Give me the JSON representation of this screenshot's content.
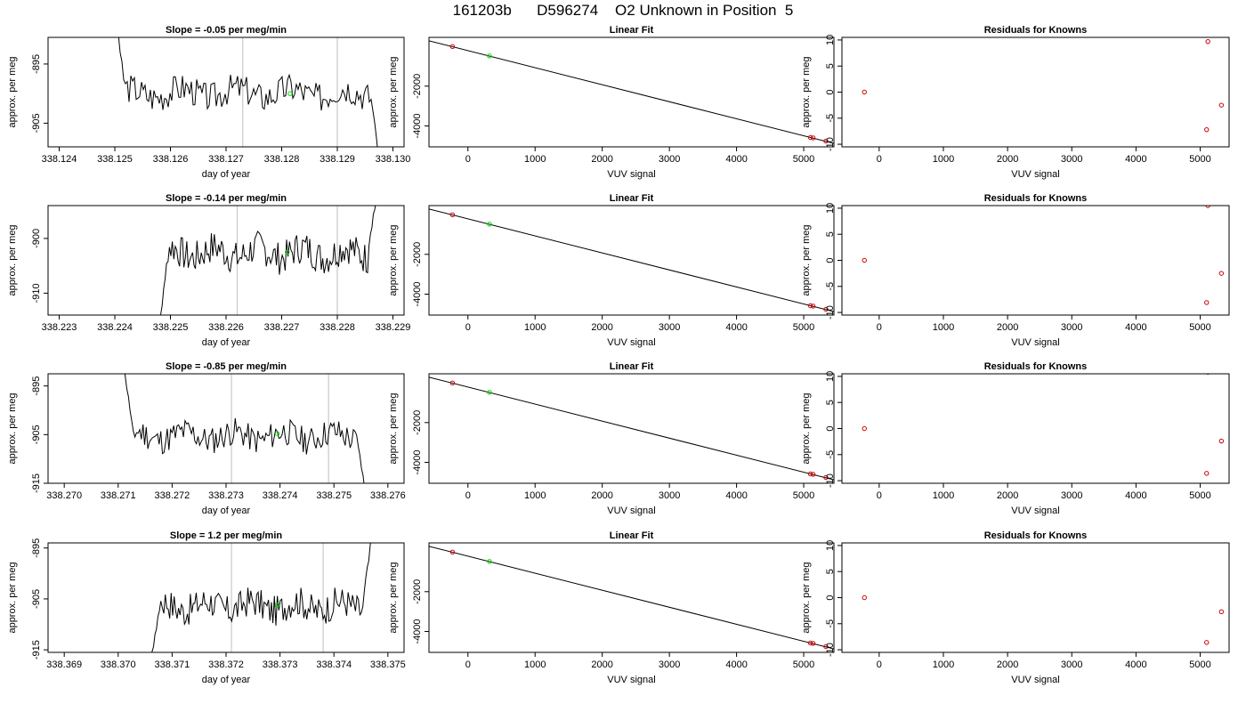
{
  "page": {
    "title": "161203b      D596274    O2 Unknown in Position  5"
  },
  "colors": {
    "trace": "#000000",
    "unknown_point": "#00dd00",
    "known_point": "#cc0000",
    "fit_line": "#000000",
    "tick_window_line": "#c8c8c8",
    "axes": "#000000"
  },
  "chart_data": [
    {
      "type": "line",
      "panel": "time-series",
      "row": 1,
      "title": "Slope =  -0.05  per meg/min",
      "xlabel": "day of year",
      "ylabel": "approx. per meg",
      "xlim": [
        338.1238,
        338.1302
      ],
      "ylim": [
        -909,
        -890.5
      ],
      "xticks": [
        "338.124",
        "338.125",
        "338.126",
        "338.127",
        "338.128",
        "338.129",
        "338.130"
      ],
      "yticks": [
        "-895",
        "-905"
      ],
      "window_lines_x": [
        338.1273,
        338.129
      ],
      "trace": {
        "x_start": 338.125,
        "x_end": 338.1298,
        "y_mean": -899.8,
        "y_amp": 1.4,
        "seed": 3,
        "lead_start": -886,
        "tail_end": -915
      },
      "mean_point": {
        "x": 338.12815,
        "y": -900.0
      }
    },
    {
      "type": "scatter",
      "panel": "linear-fit",
      "row": 1,
      "title": "Linear Fit",
      "xlabel": "VUV signal",
      "ylabel": "approx. per meg",
      "xlim": [
        -580,
        5450
      ],
      "ylim": [
        -5050,
        450
      ],
      "xticks": [
        "0",
        "1000",
        "2000",
        "3000",
        "4000",
        "5000"
      ],
      "yticks": [
        "-2000",
        "-4000"
      ],
      "fit_line": {
        "x": [
          -580,
          5450
        ],
        "y": [
          280,
          -4880
        ]
      },
      "knowns": [
        {
          "x": -230,
          "y": -10
        },
        {
          "x": 5100,
          "y": -4580
        },
        {
          "x": 5140,
          "y": -4600
        },
        {
          "x": 5330,
          "y": -4760
        }
      ],
      "unknown": {
        "x": 320,
        "y": -480
      }
    },
    {
      "type": "scatter",
      "panel": "residuals",
      "row": 1,
      "title": "Residuals for Knowns",
      "xlabel": "VUV signal",
      "ylabel": "approx. per meg",
      "xlim": [
        -580,
        5450
      ],
      "ylim": [
        -10.5,
        10.5
      ],
      "xticks": [
        "0",
        "1000",
        "2000",
        "3000",
        "4000",
        "5000"
      ],
      "yticks": [
        "-10",
        "-5",
        "0",
        "5",
        "10"
      ],
      "points": [
        {
          "x": -230,
          "y": 0
        },
        {
          "x": 5120,
          "y": 9.7
        },
        {
          "x": 5100,
          "y": -7.2
        },
        {
          "x": 5330,
          "y": -2.5
        }
      ]
    },
    {
      "type": "line",
      "panel": "time-series",
      "row": 2,
      "title": "Slope =  -0.14  per meg/min",
      "xlabel": "day of year",
      "ylabel": "approx. per meg",
      "xlim": [
        338.2228,
        338.2292
      ],
      "ylim": [
        -914,
        -894
      ],
      "xticks": [
        "338.223",
        "338.224",
        "338.225",
        "338.226",
        "338.227",
        "338.228",
        "338.229"
      ],
      "yticks": [
        "-900",
        "-910"
      ],
      "window_lines_x": [
        338.2262,
        338.228
      ],
      "trace": {
        "x_start": 338.2248,
        "x_end": 338.2287,
        "y_mean": -902.6,
        "y_amp": 1.7,
        "seed": 7,
        "lead_start": -916,
        "tail_end": -893
      },
      "mean_point": {
        "x": 338.2271,
        "y": -902.5
      }
    },
    {
      "type": "scatter",
      "panel": "linear-fit",
      "row": 2,
      "title": "Linear Fit",
      "xlabel": "VUV signal",
      "ylabel": "approx. per meg",
      "xlim": [
        -580,
        5450
      ],
      "ylim": [
        -5050,
        450
      ],
      "xticks": [
        "0",
        "1000",
        "2000",
        "3000",
        "4000",
        "5000"
      ],
      "yticks": [
        "-2000",
        "-4000"
      ],
      "fit_line": {
        "x": [
          -580,
          5450
        ],
        "y": [
          280,
          -4880
        ]
      },
      "knowns": [
        {
          "x": -230,
          "y": -10
        },
        {
          "x": 5100,
          "y": -4580
        },
        {
          "x": 5140,
          "y": -4600
        },
        {
          "x": 5330,
          "y": -4760
        }
      ],
      "unknown": {
        "x": 320,
        "y": -480
      }
    },
    {
      "type": "scatter",
      "panel": "residuals",
      "row": 2,
      "title": "Residuals for Knowns",
      "xlabel": "VUV signal",
      "ylabel": "approx. per meg",
      "xlim": [
        -580,
        5450
      ],
      "ylim": [
        -10.5,
        10.5
      ],
      "xticks": [
        "0",
        "1000",
        "2000",
        "3000",
        "4000",
        "5000"
      ],
      "yticks": [
        "-10",
        "-5",
        "0",
        "5",
        "10"
      ],
      "points": [
        {
          "x": -230,
          "y": 0
        },
        {
          "x": 5120,
          "y": 10.5
        },
        {
          "x": 5100,
          "y": -8.1
        },
        {
          "x": 5330,
          "y": -2.5
        }
      ]
    },
    {
      "type": "line",
      "panel": "time-series",
      "row": 3,
      "title": "Slope =  -0.85  per meg/min",
      "xlabel": "day of year",
      "ylabel": "approx. per meg",
      "xlim": [
        338.2697,
        338.2763
      ],
      "ylim": [
        -915,
        -892.5
      ],
      "xticks": [
        "338.270",
        "338.271",
        "338.272",
        "338.273",
        "338.274",
        "338.275",
        "338.276"
      ],
      "yticks": [
        "-895",
        "-905",
        "-915"
      ],
      "window_lines_x": [
        338.2731,
        338.2749
      ],
      "trace": {
        "x_start": 338.2711,
        "x_end": 338.2756,
        "y_mean": -905.3,
        "y_amp": 1.6,
        "seed": 11,
        "lead_start": -890,
        "tail_end": -918
      },
      "mean_point": {
        "x": 338.27395,
        "y": -904.8
      }
    },
    {
      "type": "scatter",
      "panel": "linear-fit",
      "row": 3,
      "title": "Linear Fit",
      "xlabel": "VUV signal",
      "ylabel": "approx. per meg",
      "xlim": [
        -580,
        5450
      ],
      "ylim": [
        -5050,
        450
      ],
      "xticks": [
        "0",
        "1000",
        "2000",
        "3000",
        "4000",
        "5000"
      ],
      "yticks": [
        "-2000",
        "-4000"
      ],
      "fit_line": {
        "x": [
          -580,
          5450
        ],
        "y": [
          280,
          -4880
        ]
      },
      "knowns": [
        {
          "x": -230,
          "y": -10
        },
        {
          "x": 5100,
          "y": -4580
        },
        {
          "x": 5140,
          "y": -4600
        },
        {
          "x": 5330,
          "y": -4760
        }
      ],
      "unknown": {
        "x": 320,
        "y": -480
      }
    },
    {
      "type": "scatter",
      "panel": "residuals",
      "row": 3,
      "title": "Residuals for Knowns",
      "xlabel": "VUV signal",
      "ylabel": "approx. per meg",
      "xlim": [
        -580,
        5450
      ],
      "ylim": [
        -10.5,
        10.5
      ],
      "xticks": [
        "0",
        "1000",
        "2000",
        "3000",
        "4000",
        "5000"
      ],
      "yticks": [
        "-10",
        "-5",
        "0",
        "5",
        "10"
      ],
      "points": [
        {
          "x": -230,
          "y": 0
        },
        {
          "x": 5120,
          "y": 10.8
        },
        {
          "x": 5100,
          "y": -8.6
        },
        {
          "x": 5330,
          "y": -2.4
        }
      ]
    },
    {
      "type": "line",
      "panel": "time-series",
      "row": 4,
      "title": "Slope =  1.2  per meg/min",
      "xlabel": "day of year",
      "ylabel": "approx. per meg",
      "xlim": [
        338.3687,
        338.3753
      ],
      "ylim": [
        -915.5,
        -894
      ],
      "xticks": [
        "338.369",
        "338.370",
        "338.371",
        "338.372",
        "338.373",
        "338.374",
        "338.375"
      ],
      "yticks": [
        "-895",
        "-905",
        "-915"
      ],
      "window_lines_x": [
        338.3721,
        338.3738
      ],
      "trace": {
        "x_start": 338.3706,
        "x_end": 338.3747,
        "y_mean": -906.4,
        "y_amp": 1.7,
        "seed": 17,
        "lead_start": -918,
        "tail_end": -892
      },
      "mean_point": {
        "x": 338.37295,
        "y": -906.2
      }
    },
    {
      "type": "scatter",
      "panel": "linear-fit",
      "row": 4,
      "title": "Linear Fit",
      "xlabel": "VUV signal",
      "ylabel": "approx. per meg",
      "xlim": [
        -580,
        5450
      ],
      "ylim": [
        -5050,
        450
      ],
      "xticks": [
        "0",
        "1000",
        "2000",
        "3000",
        "4000",
        "5000"
      ],
      "yticks": [
        "-2000",
        "-4000"
      ],
      "fit_line": {
        "x": [
          -580,
          5450
        ],
        "y": [
          280,
          -4880
        ]
      },
      "knowns": [
        {
          "x": -230,
          "y": -10
        },
        {
          "x": 5100,
          "y": -4580
        },
        {
          "x": 5140,
          "y": -4600
        },
        {
          "x": 5330,
          "y": -4760
        }
      ],
      "unknown": {
        "x": 320,
        "y": -480
      }
    },
    {
      "type": "scatter",
      "panel": "residuals",
      "row": 4,
      "title": "Residuals for Knowns",
      "xlabel": "VUV signal",
      "ylabel": "approx. per meg",
      "xlim": [
        -580,
        5450
      ],
      "ylim": [
        -10.5,
        10.5
      ],
      "xticks": [
        "0",
        "1000",
        "2000",
        "3000",
        "4000",
        "5000"
      ],
      "yticks": [
        "-10",
        "-5",
        "0",
        "5",
        "10"
      ],
      "points": [
        {
          "x": -230,
          "y": 0
        },
        {
          "x": 5100,
          "y": -8.6
        },
        {
          "x": 5330,
          "y": -2.7
        }
      ]
    }
  ]
}
